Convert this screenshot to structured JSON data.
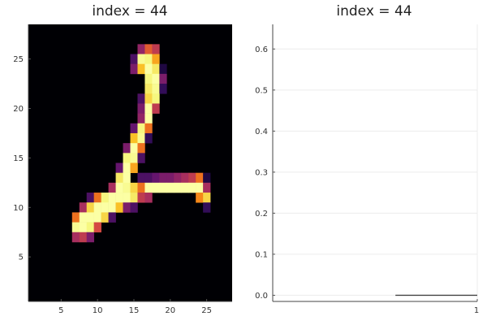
{
  "chart_data": [
    {
      "type": "heatmap",
      "title": "index = 44",
      "xlabel": "",
      "ylabel": "",
      "xlim": [
        0.5,
        28.5
      ],
      "ylim": [
        0.5,
        28.5
      ],
      "grid": false,
      "colormap": "inferno",
      "background_value": 0,
      "x_ticks": [
        5,
        10,
        15,
        20,
        25
      ],
      "y_ticks": [
        5,
        10,
        15,
        20,
        25
      ],
      "cells": [
        [
          16,
          26,
          0.35
        ],
        [
          17,
          26,
          0.55
        ],
        [
          18,
          26,
          0.45
        ],
        [
          15,
          25,
          0.2
        ],
        [
          16,
          25,
          0.95
        ],
        [
          17,
          25,
          0.9
        ],
        [
          18,
          25,
          0.7
        ],
        [
          15,
          24,
          0.3
        ],
        [
          16,
          24,
          0.75
        ],
        [
          17,
          24,
          1.0
        ],
        [
          18,
          24,
          0.85
        ],
        [
          19,
          24,
          0.1
        ],
        [
          17,
          23,
          0.9
        ],
        [
          18,
          23,
          1.0
        ],
        [
          19,
          23,
          0.3
        ],
        [
          17,
          22,
          0.85
        ],
        [
          18,
          22,
          0.95
        ],
        [
          19,
          22,
          0.15
        ],
        [
          16,
          21,
          0.2
        ],
        [
          17,
          21,
          0.8
        ],
        [
          18,
          21,
          0.9
        ],
        [
          16,
          20,
          0.3
        ],
        [
          17,
          20,
          1.0
        ],
        [
          18,
          20,
          0.45
        ],
        [
          16,
          19,
          0.35
        ],
        [
          17,
          19,
          1.0
        ],
        [
          15,
          18,
          0.25
        ],
        [
          16,
          18,
          0.9
        ],
        [
          17,
          18,
          0.6
        ],
        [
          15,
          17,
          0.75
        ],
        [
          16,
          17,
          0.95
        ],
        [
          17,
          17,
          0.15
        ],
        [
          14,
          16,
          0.3
        ],
        [
          15,
          16,
          1.0
        ],
        [
          16,
          16,
          0.6
        ],
        [
          14,
          15,
          0.9
        ],
        [
          15,
          15,
          0.95
        ],
        [
          16,
          15,
          0.2
        ],
        [
          13,
          14,
          0.25
        ],
        [
          14,
          14,
          1.0
        ],
        [
          15,
          14,
          0.7
        ],
        [
          13,
          13,
          0.85
        ],
        [
          14,
          13,
          1.0
        ],
        [
          16,
          13,
          0.2
        ],
        [
          17,
          13,
          0.2
        ],
        [
          18,
          13,
          0.25
        ],
        [
          19,
          13,
          0.3
        ],
        [
          20,
          13,
          0.3
        ],
        [
          21,
          13,
          0.35
        ],
        [
          22,
          13,
          0.4
        ],
        [
          23,
          13,
          0.45
        ],
        [
          24,
          13,
          0.6
        ],
        [
          25,
          13,
          0.1
        ],
        [
          12,
          12,
          0.4
        ],
        [
          13,
          12,
          1.0
        ],
        [
          14,
          12,
          0.95
        ],
        [
          15,
          12,
          0.8
        ],
        [
          16,
          12,
          0.6
        ],
        [
          17,
          12,
          1.0
        ],
        [
          18,
          12,
          1.0
        ],
        [
          19,
          12,
          1.0
        ],
        [
          20,
          12,
          1.0
        ],
        [
          21,
          12,
          1.0
        ],
        [
          22,
          12,
          1.0
        ],
        [
          23,
          12,
          1.0
        ],
        [
          24,
          12,
          1.0
        ],
        [
          25,
          12,
          0.4
        ],
        [
          9,
          11,
          0.2
        ],
        [
          10,
          11,
          0.6
        ],
        [
          11,
          11,
          0.9
        ],
        [
          12,
          11,
          1.0
        ],
        [
          13,
          11,
          1.0
        ],
        [
          14,
          11,
          1.0
        ],
        [
          15,
          11,
          0.85
        ],
        [
          16,
          11,
          0.45
        ],
        [
          17,
          11,
          0.4
        ],
        [
          24,
          11,
          0.65
        ],
        [
          25,
          11,
          0.8
        ],
        [
          8,
          10,
          0.4
        ],
        [
          9,
          10,
          0.8
        ],
        [
          10,
          10,
          1.0
        ],
        [
          11,
          10,
          1.0
        ],
        [
          12,
          10,
          1.0
        ],
        [
          13,
          10,
          0.75
        ],
        [
          14,
          10,
          0.3
        ],
        [
          15,
          10,
          0.2
        ],
        [
          25,
          10,
          0.15
        ],
        [
          7,
          9,
          0.6
        ],
        [
          8,
          9,
          1.0
        ],
        [
          9,
          9,
          1.0
        ],
        [
          10,
          9,
          1.0
        ],
        [
          11,
          9,
          0.8
        ],
        [
          12,
          9,
          0.2
        ],
        [
          7,
          8,
          0.95
        ],
        [
          8,
          8,
          1.0
        ],
        [
          9,
          8,
          0.9
        ],
        [
          10,
          8,
          0.5
        ],
        [
          7,
          7,
          0.4
        ],
        [
          8,
          7,
          0.45
        ],
        [
          9,
          7,
          0.3
        ]
      ]
    },
    {
      "type": "line",
      "title": "index = 44",
      "xlabel": "",
      "ylabel": "",
      "xlim": [
        0,
        1
      ],
      "ylim": [
        -0.015,
        0.66
      ],
      "grid": true,
      "legend": "none",
      "x_ticks": [
        {
          "value": 1,
          "label": "1"
        }
      ],
      "y_ticks": [
        {
          "value": 0.0,
          "label": "0.0"
        },
        {
          "value": 0.1,
          "label": "0.1"
        },
        {
          "value": 0.2,
          "label": "0.2"
        },
        {
          "value": 0.3,
          "label": "0.3"
        },
        {
          "value": 0.4,
          "label": "0.4"
        },
        {
          "value": 0.5,
          "label": "0.5"
        },
        {
          "value": 0.6,
          "label": "0.6"
        }
      ],
      "series": [
        {
          "x": [
            0.6,
            1.0
          ],
          "y": [
            0.0,
            0.0
          ],
          "color": "#444444"
        }
      ]
    }
  ]
}
